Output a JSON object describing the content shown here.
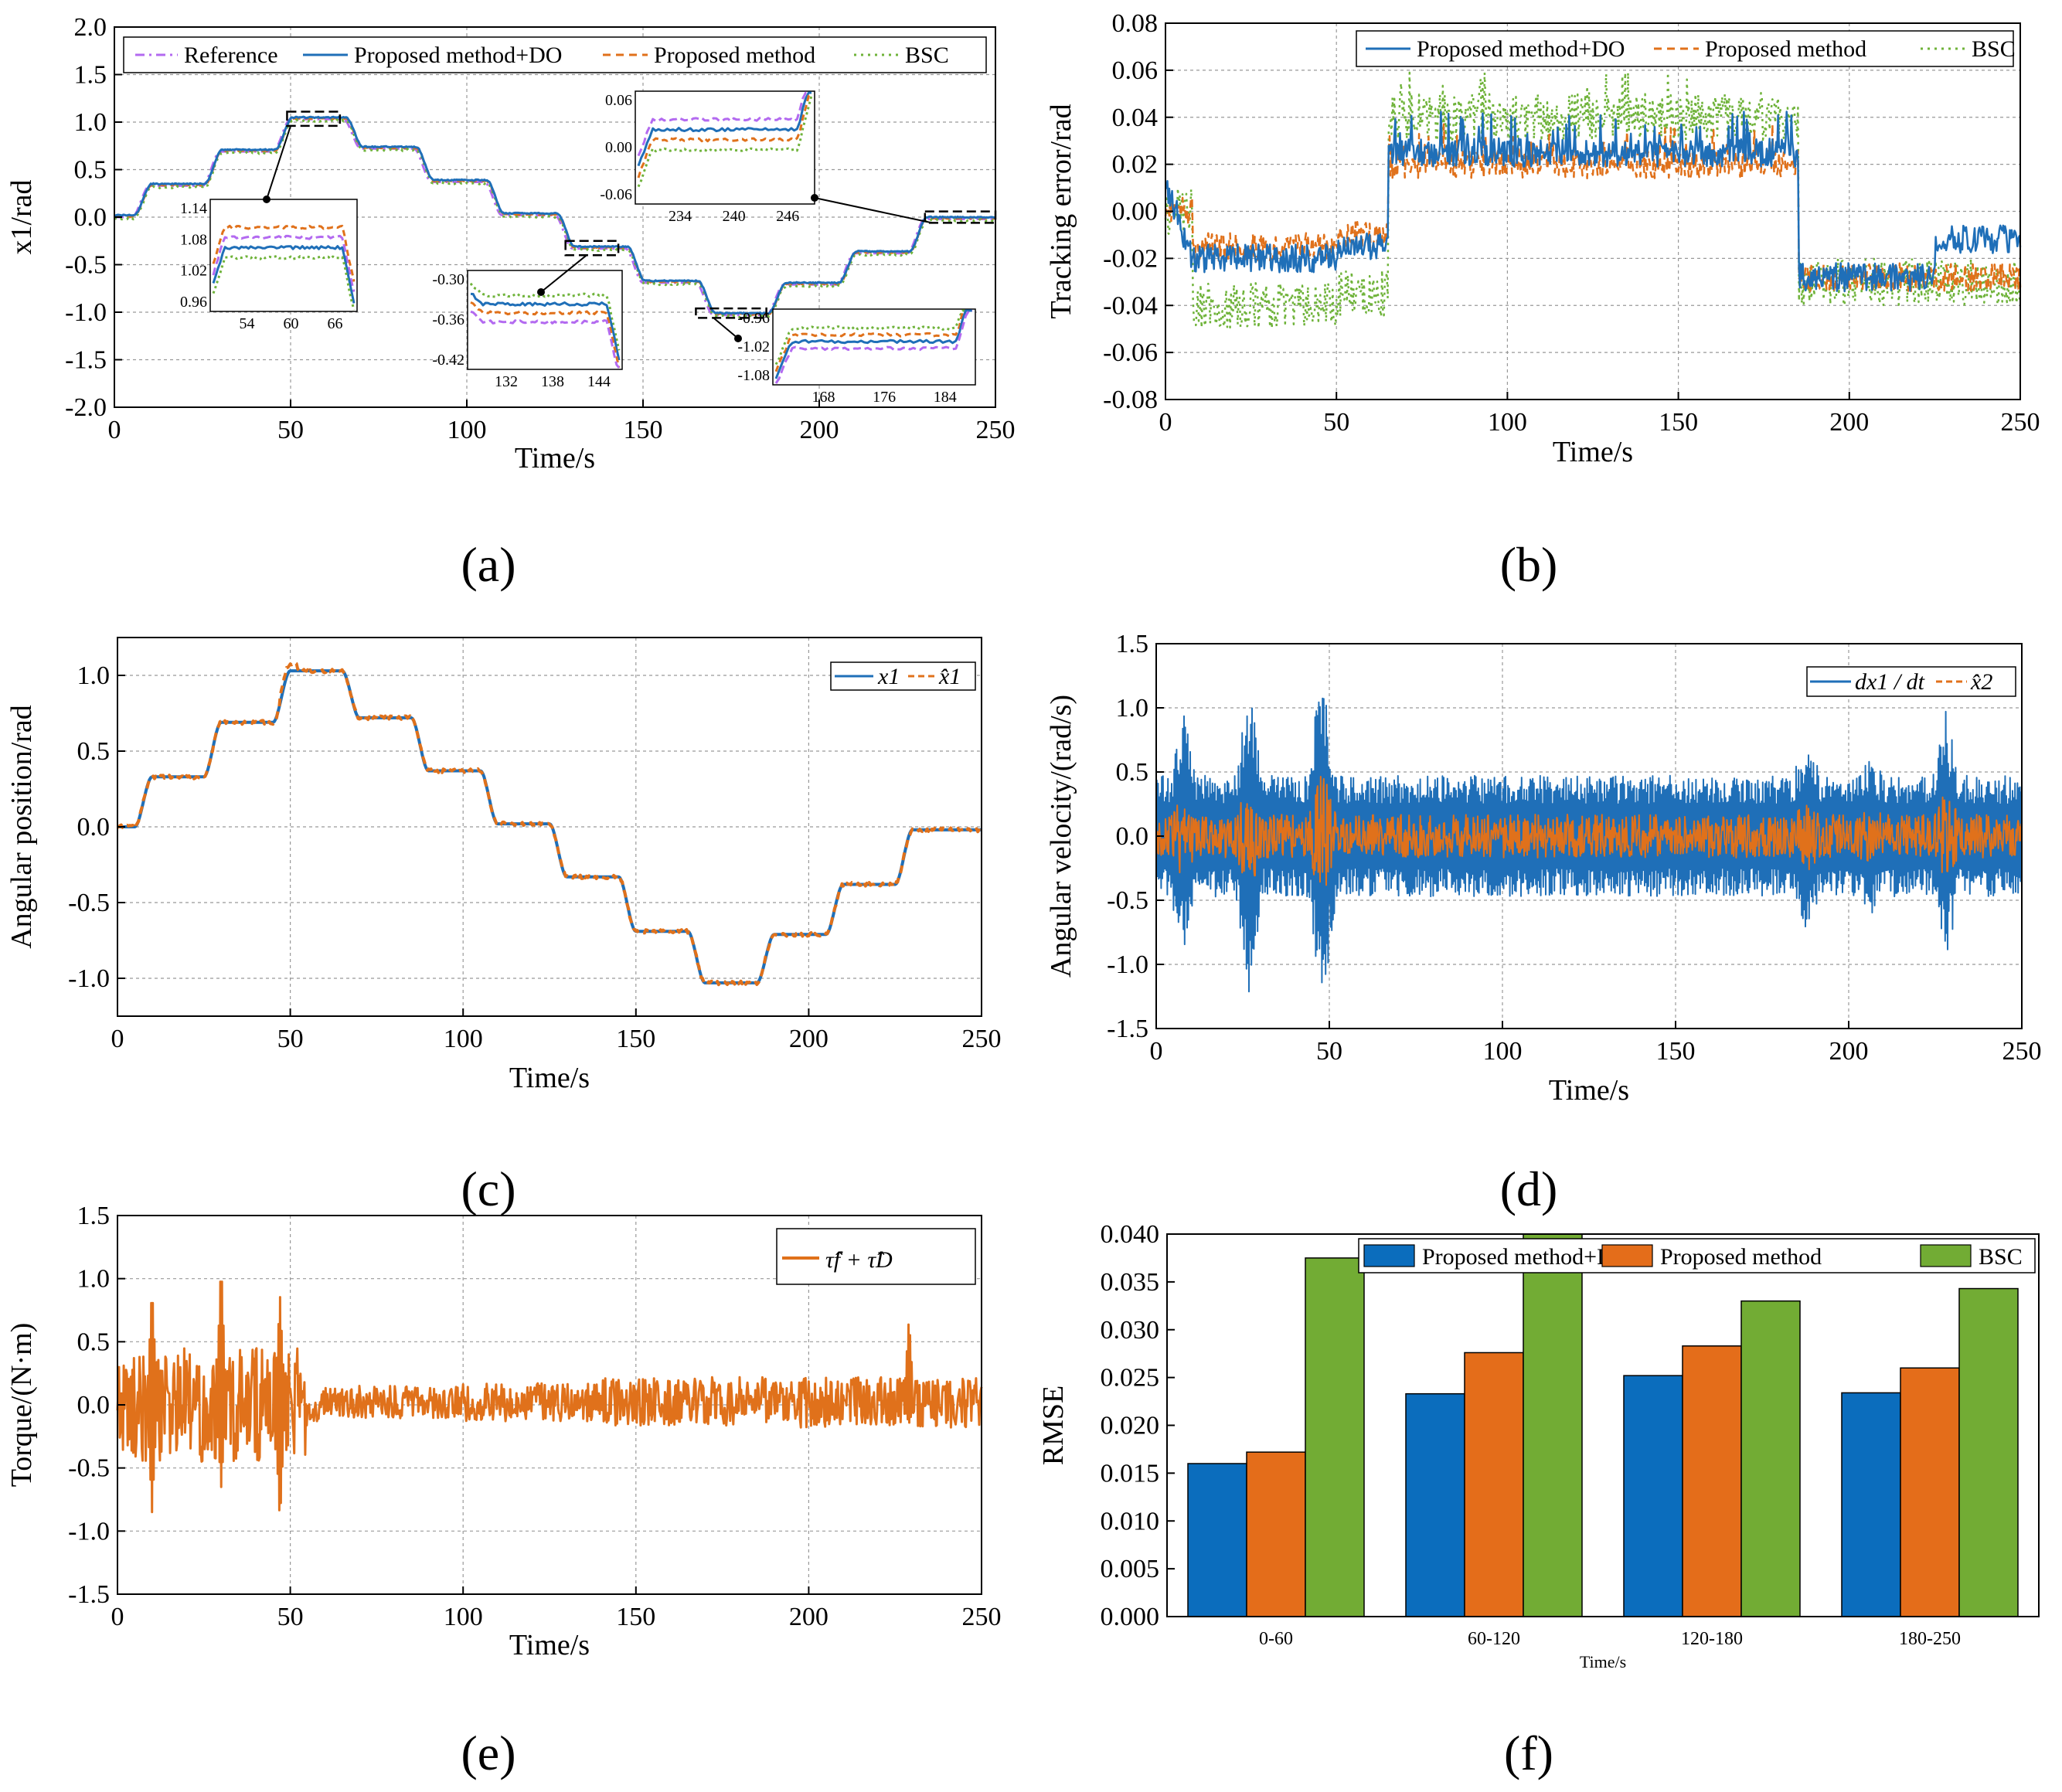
{
  "panels": {
    "a": {
      "label": "(a)"
    },
    "b": {
      "label": "(b)"
    },
    "c": {
      "label": "(c)"
    },
    "d": {
      "label": "(d)"
    },
    "e": {
      "label": "(e)"
    },
    "f": {
      "label": "(f)"
    }
  },
  "colors": {
    "reference": "#b36af0",
    "do": "#1f6fb8",
    "proposed": "#e0711b",
    "bsc": "#6fb33a",
    "bar_do": "#0b6dbd",
    "bar_proposed": "#e46d1a",
    "bar_bsc": "#72ac34"
  },
  "chart_data": [
    {
      "id": "a",
      "type": "line",
      "xlabel": "Time/s",
      "ylabel": "x1/rad",
      "xlim": [
        0,
        250
      ],
      "ylim": [
        -2.0,
        2.0
      ],
      "xticks": [
        "0",
        "50",
        "100",
        "150",
        "200",
        "250"
      ],
      "yticks": [
        "-2.0",
        "-1.5",
        "-1.0",
        "-0.5",
        "0.0",
        "0.5",
        "1.0",
        "1.5",
        "2.0"
      ],
      "legend": [
        "Reference",
        "Proposed method+DO",
        "Proposed method",
        "BSC"
      ],
      "legend_position": "top",
      "reference_steps": {
        "x": [
          0,
          5,
          10,
          25,
          30,
          45,
          50,
          65,
          70,
          85,
          90,
          105,
          110,
          125,
          130,
          145,
          150,
          165,
          170,
          185,
          190,
          205,
          210,
          225,
          230,
          250
        ],
        "y": [
          0,
          0,
          0.33,
          0.33,
          0.69,
          0.69,
          1.03,
          1.03,
          0.72,
          0.72,
          0.37,
          0.37,
          0.02,
          0.02,
          -0.33,
          -0.33,
          -0.69,
          -0.69,
          -1.03,
          -1.03,
          -0.71,
          -0.71,
          -0.38,
          -0.38,
          -0.02,
          -0.02
        ]
      },
      "insets": [
        {
          "yticks": [
            "1.14",
            "1.08",
            "1.02",
            "0.96"
          ],
          "xticks": [
            "54",
            "60",
            "66"
          ]
        },
        {
          "yticks": [
            "0.06",
            "0.00",
            "-0.06"
          ],
          "xticks": [
            "234",
            "240",
            "246"
          ]
        },
        {
          "yticks": [
            "-0.30",
            "-0.36",
            "-0.42"
          ],
          "xticks": [
            "132",
            "138",
            "144"
          ]
        },
        {
          "yticks": [
            "-0.96",
            "-1.02",
            "-1.08"
          ],
          "xticks": [
            "168",
            "176",
            "184"
          ]
        }
      ],
      "grid": true
    },
    {
      "id": "b",
      "type": "line",
      "xlabel": "Time/s",
      "ylabel": "Tracking error/rad",
      "xlim": [
        0,
        250
      ],
      "ylim": [
        -0.08,
        0.08
      ],
      "xticks": [
        "0",
        "50",
        "100",
        "150",
        "200",
        "250"
      ],
      "yticks": [
        "-0.08",
        "-0.06",
        "-0.04",
        "-0.02",
        "0.00",
        "0.02",
        "0.04",
        "0.06",
        "0.08"
      ],
      "legend": [
        "Proposed method+DO",
        "Proposed method",
        "BSC"
      ],
      "legend_position": "top-right",
      "series": [
        {
          "name": "Proposed method+DO",
          "segments": [
            [
              0,
              0.012
            ],
            [
              8,
              -0.02
            ],
            [
              50,
              -0.015
            ],
            [
              65,
              0.025
            ],
            [
              185,
              -0.028
            ],
            [
              225,
              -0.012
            ],
            [
              250,
              -0.012
            ]
          ]
        },
        {
          "name": "Proposed method",
          "segments": [
            [
              0,
              0.0
            ],
            [
              8,
              -0.015
            ],
            [
              50,
              -0.01
            ],
            [
              65,
              0.02
            ],
            [
              185,
              -0.028
            ],
            [
              250,
              -0.026
            ]
          ]
        },
        {
          "name": "BSC",
          "segments": [
            [
              0,
              0.0
            ],
            [
              8,
              -0.04
            ],
            [
              50,
              -0.035
            ],
            [
              65,
              0.04
            ],
            [
              185,
              -0.03
            ],
            [
              250,
              -0.022
            ]
          ]
        }
      ],
      "grid": true
    },
    {
      "id": "c",
      "type": "line",
      "xlabel": "Time/s",
      "ylabel": "Angular position/rad",
      "xlim": [
        0,
        250
      ],
      "ylim": [
        -1.25,
        1.25
      ],
      "xticks": [
        "0",
        "50",
        "100",
        "150",
        "200",
        "250"
      ],
      "yticks": [
        "-1.0",
        "-0.5",
        "0.0",
        "0.5",
        "1.0"
      ],
      "legend": [
        "x1",
        "x̂1"
      ],
      "legend_position": "top-right",
      "grid": true
    },
    {
      "id": "d",
      "type": "line",
      "xlabel": "Time/s",
      "ylabel": "Angular velocity/(rad/s)",
      "xlim": [
        0,
        250
      ],
      "ylim": [
        -1.5,
        1.5
      ],
      "xticks": [
        "0",
        "50",
        "100",
        "150",
        "200",
        "250"
      ],
      "yticks": [
        "-1.5",
        "-1.0",
        "-0.5",
        "0.0",
        "0.5",
        "1.0",
        "1.5"
      ],
      "legend": [
        "dx1 / dt",
        "x̂2"
      ],
      "legend_position": "top-right",
      "grid": true
    },
    {
      "id": "e",
      "type": "line",
      "xlabel": "Time/s",
      "ylabel": "Torque/(N·m)",
      "xlim": [
        0,
        250
      ],
      "ylim": [
        -1.5,
        1.5
      ],
      "xticks": [
        "0",
        "50",
        "100",
        "150",
        "200",
        "250"
      ],
      "yticks": [
        "-1.5",
        "-1.0",
        "-0.5",
        "0.0",
        "0.5",
        "1.0",
        "1.5"
      ],
      "legend": [
        "τ̂f + τ̂D"
      ],
      "legend_position": "top-right",
      "grid": true
    },
    {
      "id": "f",
      "type": "bar",
      "xlabel": "Time/s",
      "ylabel": "RMSE",
      "ylim": [
        0,
        0.04
      ],
      "yticks": [
        "0.000",
        "0.005",
        "0.010",
        "0.015",
        "0.020",
        "0.025",
        "0.030",
        "0.035",
        "0.040"
      ],
      "categories": [
        "0-60",
        "60-120",
        "120-180",
        "180-250"
      ],
      "series": [
        {
          "name": "Proposed method+DO",
          "values": [
            0.016,
            0.0233,
            0.0252,
            0.0234
          ]
        },
        {
          "name": "Proposed method",
          "values": [
            0.0172,
            0.0276,
            0.0283,
            0.026
          ]
        },
        {
          "name": "BSC",
          "values": [
            0.0375,
            0.04,
            0.033,
            0.0343
          ]
        }
      ],
      "legend_position": "top",
      "grid": false
    }
  ]
}
